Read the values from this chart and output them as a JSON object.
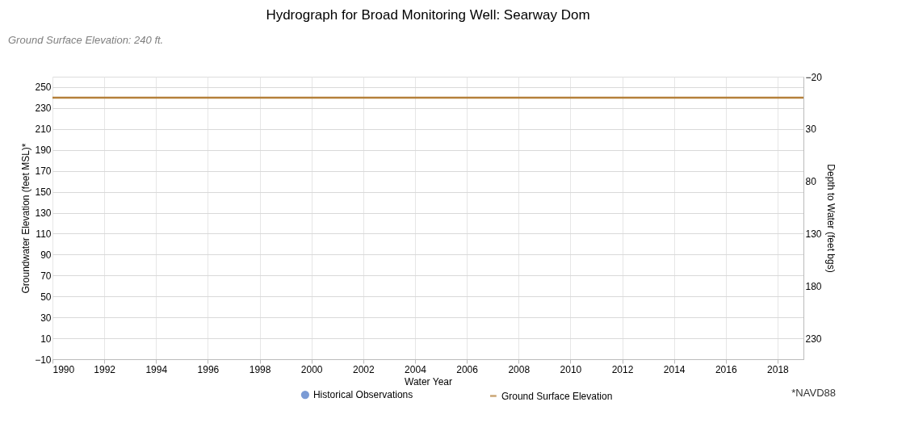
{
  "chart_data": {
    "type": "line",
    "title": "Hydrograph for Broad Monitoring Well: Searway Dom",
    "xlabel": "Water Year",
    "ylabel": "Groundwater Elevation (feet MSL)*",
    "y2label": "Depth to Water (feet bgs)",
    "annotations": [
      "Ground Surface Elevation:  240 ft.",
      "*NAVD88"
    ],
    "series": [
      {
        "name": "Historical Observations",
        "type": "scatter",
        "color": "#4472c4"
      },
      {
        "name": "Ground Surface Elevation",
        "color": "#b5803a",
        "x": [
          1990,
          2019
        ],
        "values": [
          240,
          240
        ]
      }
    ],
    "xlim": [
      1990,
      2019
    ],
    "xticks": [
      1990,
      1992,
      1994,
      1996,
      1998,
      2000,
      2002,
      2004,
      2006,
      2008,
      2010,
      2012,
      2014,
      2016,
      2018
    ],
    "ylim": [
      -10,
      260
    ],
    "yticks": [
      -10,
      10,
      30,
      50,
      70,
      90,
      110,
      130,
      150,
      170,
      190,
      210,
      230,
      250
    ],
    "y2lim": [
      250,
      -20
    ],
    "y2ticks": [
      -20,
      30,
      80,
      130,
      180,
      230
    ],
    "grid": true,
    "legend": "bottom",
    "line_style": "solid"
  }
}
